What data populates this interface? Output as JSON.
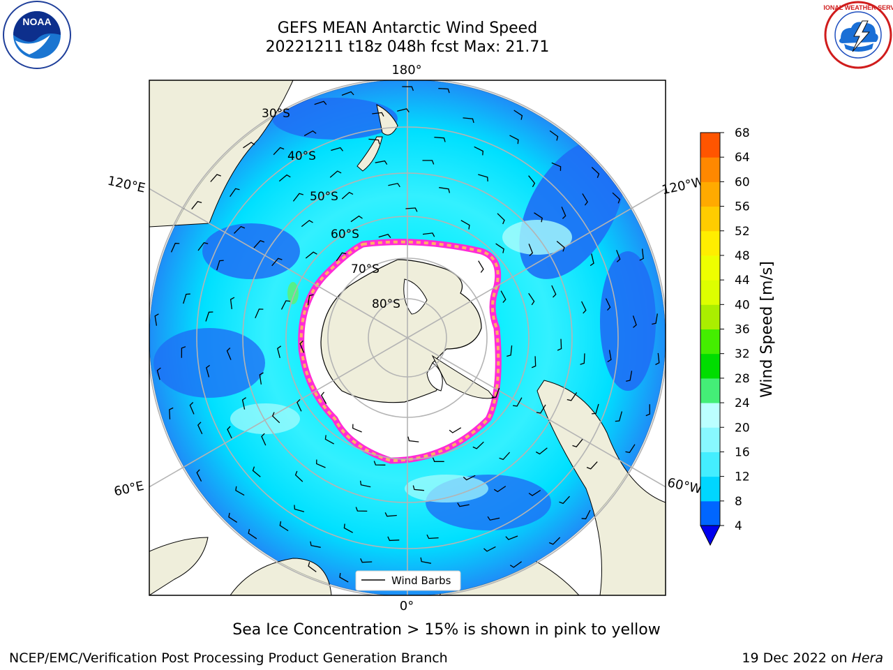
{
  "header": {
    "title_line1": "GEFS MEAN Antarctic Wind Speed",
    "title_line2": "20221211 t18z 048h fcst   Max: 21.71"
  },
  "logos": {
    "left": {
      "icon": "noaa-logo",
      "text": "NOAA"
    },
    "right": {
      "icon": "national-weather-service-logo",
      "text": "NATIONAL WEATHER SERVICE"
    }
  },
  "map": {
    "projection": "south-polar-stereographic",
    "longitude_labels": {
      "top": "180°",
      "left_upper": "120°E",
      "right_upper": "120°W",
      "left_lower": "60°E",
      "right_lower": "60°W",
      "bottom": "0°"
    },
    "latitude_labels": [
      "30°S",
      "40°S",
      "50°S",
      "60°S",
      "70°S",
      "80°S"
    ],
    "legend_label": "Wind Barbs",
    "colors": {
      "land": "#efeedb",
      "wind_4_8": "#0a72f5",
      "wind_8_12": "#00eeff",
      "wind_12_16": "#55f5ff",
      "wind_16_20": "#aafcfc",
      "wind_20_24": "#55f08a",
      "sea_ice_edge": "#ff2bd6",
      "sea_ice_mid": "#ffb066",
      "sea_ice_inner": "#ffffff",
      "grid": "#b4b4b4"
    }
  },
  "colorbar": {
    "label": "Wind Speed [m/s]",
    "ticks": [
      "4",
      "8",
      "12",
      "16",
      "20",
      "24",
      "28",
      "32",
      "36",
      "40",
      "44",
      "48",
      "52",
      "56",
      "60",
      "64",
      "68"
    ],
    "colors": [
      "#0066ff",
      "#00d6ff",
      "#44eeff",
      "#88f8ff",
      "#bbffff",
      "#44ee77",
      "#00dd00",
      "#44ee00",
      "#aaee00",
      "#ddff00",
      "#eeff00",
      "#ffee00",
      "#ffcc00",
      "#ffaa00",
      "#ff8800",
      "#ff5500",
      "#ff2200",
      "#ff0000"
    ],
    "under_color": "#0000ee"
  },
  "footer": {
    "note": "Sea Ice Concentration > 15% is shown in pink to yellow",
    "credit": "NCEP/EMC/Verification Post Processing Product Generation Branch",
    "date": "19 Dec 2022 on",
    "host": "Hera"
  }
}
